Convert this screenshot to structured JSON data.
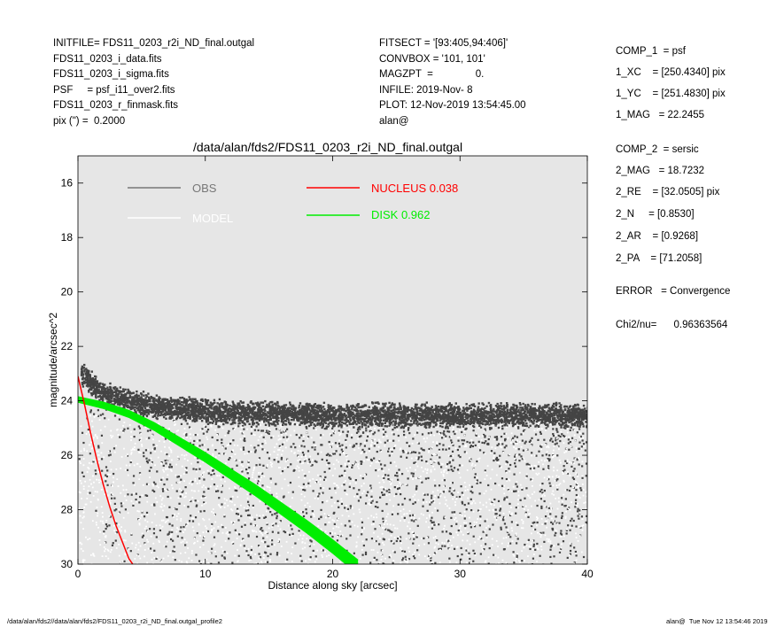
{
  "header_left": [
    "INITFILE= FDS11_0203_r2i_ND_final.outgal",
    "FDS11_0203_i_data.fits",
    "FDS11_0203_i_sigma.fits",
    "PSF     = psf_i11_over2.fits",
    "FDS11_0203_r_finmask.fits",
    "pix (\") =  0.2000"
  ],
  "header_mid": [
    "FITSECT = '[93:405,94:406]'",
    "CONVBOX = '101, 101'",
    "MAGZPT  =               0.",
    "INFILE: 2019-Nov- 8",
    "PLOT: 12-Nov-2019 13:54:45.00",
    "alan@"
  ],
  "params": [
    "COMP_1  = psf",
    "1_XC    = [250.4340] pix",
    "1_YC    = [251.4830] pix",
    "1_MAG   = 22.2455",
    "COMP_2  = sersic",
    "2_MAG   = 18.7232",
    "2_RE    = [32.0505] pix",
    "2_N     = [0.8530]",
    "2_AR    = [0.9268]",
    "2_PA    = [71.2058]",
    "ERROR   = Convergence",
    "Chi2/nu=      0.96363564"
  ],
  "footer_left": "/data/alan/fds2//data/alan/fds2/FDS11_0203_r2i_ND_final.outgal_profile2",
  "footer_right": "alan@  Tue Nov 12 13:54:46 2019",
  "chart_data": {
    "type": "scatter",
    "title": "/data/alan/fds2/FDS11_0203_r2i_ND_final.outgal",
    "xlabel": "Distance along sky [arcsec]",
    "ylabel": "magnitude/arcsec^2",
    "xlim": [
      0,
      40
    ],
    "ylim": [
      30,
      15
    ],
    "y_inverted": true,
    "x_ticks": [
      "0",
      "10",
      "20",
      "30",
      "40"
    ],
    "y_ticks": [
      "16",
      "18",
      "20",
      "22",
      "24",
      "26",
      "28",
      "30"
    ],
    "background": "#e6e6e6",
    "legend": [
      {
        "label": "OBS",
        "color": "#777777"
      },
      {
        "label": "MODEL",
        "color": "#ffffff"
      },
      {
        "label": "NUCLEUS  0.038",
        "color": "#ff0000"
      },
      {
        "label": "DISK  0.962",
        "color": "#00ee00"
      }
    ],
    "series": [
      {
        "name": "OBS",
        "kind": "points",
        "color": "#444444",
        "band_center": [
          [
            0.2,
            23.0
          ],
          [
            2,
            23.7
          ],
          [
            5,
            24.1
          ],
          [
            10,
            24.35
          ],
          [
            20,
            24.5
          ],
          [
            30,
            24.5
          ],
          [
            40,
            24.5
          ]
        ],
        "band_halfwidth_mag": 0.35,
        "spread_to_mag": 30
      },
      {
        "name": "MODEL",
        "kind": "points",
        "color": "#ffffff",
        "approx_range_mag": [
          24.3,
          30
        ]
      },
      {
        "name": "NUCLEUS",
        "kind": "line",
        "color": "#ff0000",
        "x": [
          0.0,
          0.5,
          1.0,
          1.5,
          2.0,
          2.5,
          3.0,
          3.5,
          4.0,
          4.3
        ],
        "y": [
          23.1,
          24.1,
          25.2,
          26.2,
          27.1,
          27.9,
          28.6,
          29.2,
          29.8,
          30.0
        ]
      },
      {
        "name": "DISK",
        "kind": "band",
        "color": "#00ee00",
        "x": [
          0.0,
          2.0,
          4.0,
          6.0,
          8.0,
          10.0,
          12.0,
          14.0,
          16.0,
          18.0,
          20.0,
          22.0
        ],
        "y": [
          23.95,
          24.15,
          24.45,
          24.9,
          25.45,
          26.0,
          26.6,
          27.2,
          27.85,
          28.5,
          29.2,
          29.95
        ],
        "halfwidth_mag": 0.12
      }
    ]
  }
}
